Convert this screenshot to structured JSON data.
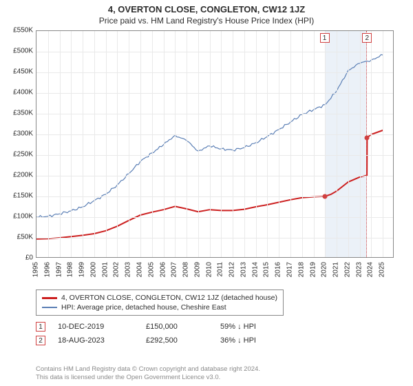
{
  "title": "4, OVERTON CLOSE, CONGLETON, CW12 1JZ",
  "subtitle": "Price paid vs. HM Land Registry's House Price Index (HPI)",
  "chart": {
    "type": "line",
    "background_color": "#ffffff",
    "grid_color": "#e9e9e9",
    "axis_color": "#888888",
    "y": {
      "min": 0,
      "max": 550,
      "step": 50,
      "ticks": [
        "£0",
        "£50K",
        "£100K",
        "£150K",
        "£200K",
        "£250K",
        "£300K",
        "£350K",
        "£400K",
        "£450K",
        "£500K",
        "£550K"
      ]
    },
    "x": {
      "min": 1995,
      "max": 2026,
      "ticks": [
        1995,
        1996,
        1997,
        1998,
        1999,
        2000,
        2001,
        2002,
        2003,
        2004,
        2005,
        2006,
        2007,
        2008,
        2009,
        2010,
        2011,
        2012,
        2013,
        2014,
        2015,
        2016,
        2017,
        2018,
        2019,
        2020,
        2021,
        2022,
        2023,
        2024,
        2025
      ]
    },
    "shaded_region": {
      "start": 2019.95,
      "end": 2023.63
    },
    "markers": [
      {
        "label": "1",
        "year": 2019.95,
        "price": 150,
        "dot": true
      },
      {
        "label": "2",
        "year": 2023.63,
        "price": 292.5,
        "dot": true
      }
    ],
    "series": [
      {
        "name": "price_paid",
        "color": "#cc1f1f",
        "width": 2,
        "points": [
          [
            1995,
            47
          ],
          [
            1996,
            48
          ],
          [
            1997,
            50
          ],
          [
            1998,
            53
          ],
          [
            1999,
            56
          ],
          [
            2000,
            60
          ],
          [
            2001,
            67
          ],
          [
            2002,
            78
          ],
          [
            2003,
            92
          ],
          [
            2004,
            105
          ],
          [
            2005,
            112
          ],
          [
            2006,
            118
          ],
          [
            2007,
            126
          ],
          [
            2008,
            120
          ],
          [
            2009,
            113
          ],
          [
            2010,
            118
          ],
          [
            2011,
            116
          ],
          [
            2012,
            116
          ],
          [
            2013,
            119
          ],
          [
            2014,
            125
          ],
          [
            2015,
            130
          ],
          [
            2016,
            136
          ],
          [
            2017,
            142
          ],
          [
            2018,
            147
          ],
          [
            2019,
            149
          ],
          [
            2019.94,
            150
          ],
          [
            2019.96,
            150
          ],
          [
            2020.5,
            155
          ],
          [
            2021,
            163
          ],
          [
            2022,
            185
          ],
          [
            2023,
            197
          ],
          [
            2023.62,
            201
          ],
          [
            2023.64,
            292.5
          ],
          [
            2024,
            300
          ],
          [
            2024.5,
            305
          ],
          [
            2025,
            310
          ]
        ]
      },
      {
        "name": "hpi",
        "color": "#5b7fb5",
        "width": 1.2,
        "noise": 4,
        "points": [
          [
            1995,
            100
          ],
          [
            1996,
            102
          ],
          [
            1997,
            108
          ],
          [
            1998,
            115
          ],
          [
            1999,
            125
          ],
          [
            2000,
            140
          ],
          [
            2001,
            155
          ],
          [
            2002,
            178
          ],
          [
            2003,
            205
          ],
          [
            2004,
            235
          ],
          [
            2005,
            255
          ],
          [
            2006,
            275
          ],
          [
            2007,
            298
          ],
          [
            2008,
            285
          ],
          [
            2009,
            260
          ],
          [
            2010,
            272
          ],
          [
            2011,
            265
          ],
          [
            2012,
            262
          ],
          [
            2013,
            268
          ],
          [
            2014,
            280
          ],
          [
            2015,
            295
          ],
          [
            2016,
            312
          ],
          [
            2017,
            330
          ],
          [
            2018,
            348
          ],
          [
            2019,
            360
          ],
          [
            2020,
            372
          ],
          [
            2021,
            405
          ],
          [
            2022,
            455
          ],
          [
            2023,
            472
          ],
          [
            2024,
            480
          ],
          [
            2025,
            492
          ]
        ]
      }
    ]
  },
  "legend": {
    "items": [
      {
        "color": "#cc1f1f",
        "width": 2,
        "label": "4, OVERTON CLOSE, CONGLETON, CW12 1JZ (detached house)"
      },
      {
        "color": "#5b7fb5",
        "width": 1.2,
        "label": "HPI: Average price, detached house, Cheshire East"
      }
    ]
  },
  "sales": [
    {
      "marker": "1",
      "date": "10-DEC-2019",
      "price": "£150,000",
      "diff": "59% ↓ HPI"
    },
    {
      "marker": "2",
      "date": "18-AUG-2023",
      "price": "£292,500",
      "diff": "36% ↓ HPI"
    }
  ],
  "footnote": {
    "l1": "Contains HM Land Registry data © Crown copyright and database right 2024.",
    "l2": "This data is licensed under the Open Government Licence v3.0."
  }
}
